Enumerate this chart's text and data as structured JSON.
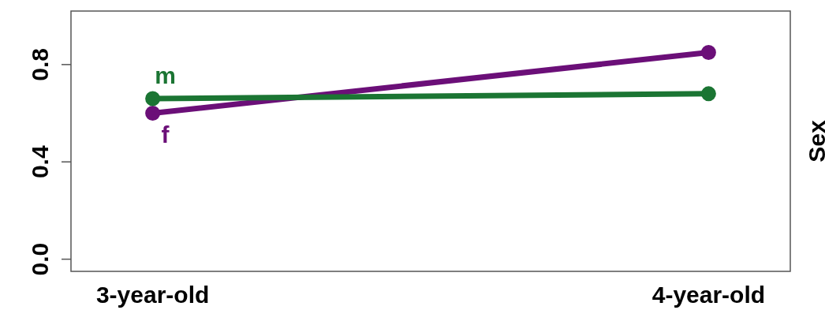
{
  "chart_data": {
    "type": "line",
    "legend_title": "Sex",
    "categories": [
      "3-year-old",
      "4-year-old"
    ],
    "series": [
      {
        "name": "m",
        "color": "#1b7533",
        "values": [
          0.66,
          0.68
        ]
      },
      {
        "name": "f",
        "color": "#6b0f78",
        "values": [
          0.6,
          0.85
        ]
      }
    ],
    "ylim": [
      -0.05,
      1.02
    ],
    "yticks": [
      {
        "value": 0,
        "label": "0.0"
      },
      {
        "value": 0.4,
        "label": "0.4"
      },
      {
        "value": 0.8,
        "label": "0.8"
      }
    ],
    "legend": false,
    "grid": false,
    "marker": "circle",
    "line_style": "solid"
  }
}
